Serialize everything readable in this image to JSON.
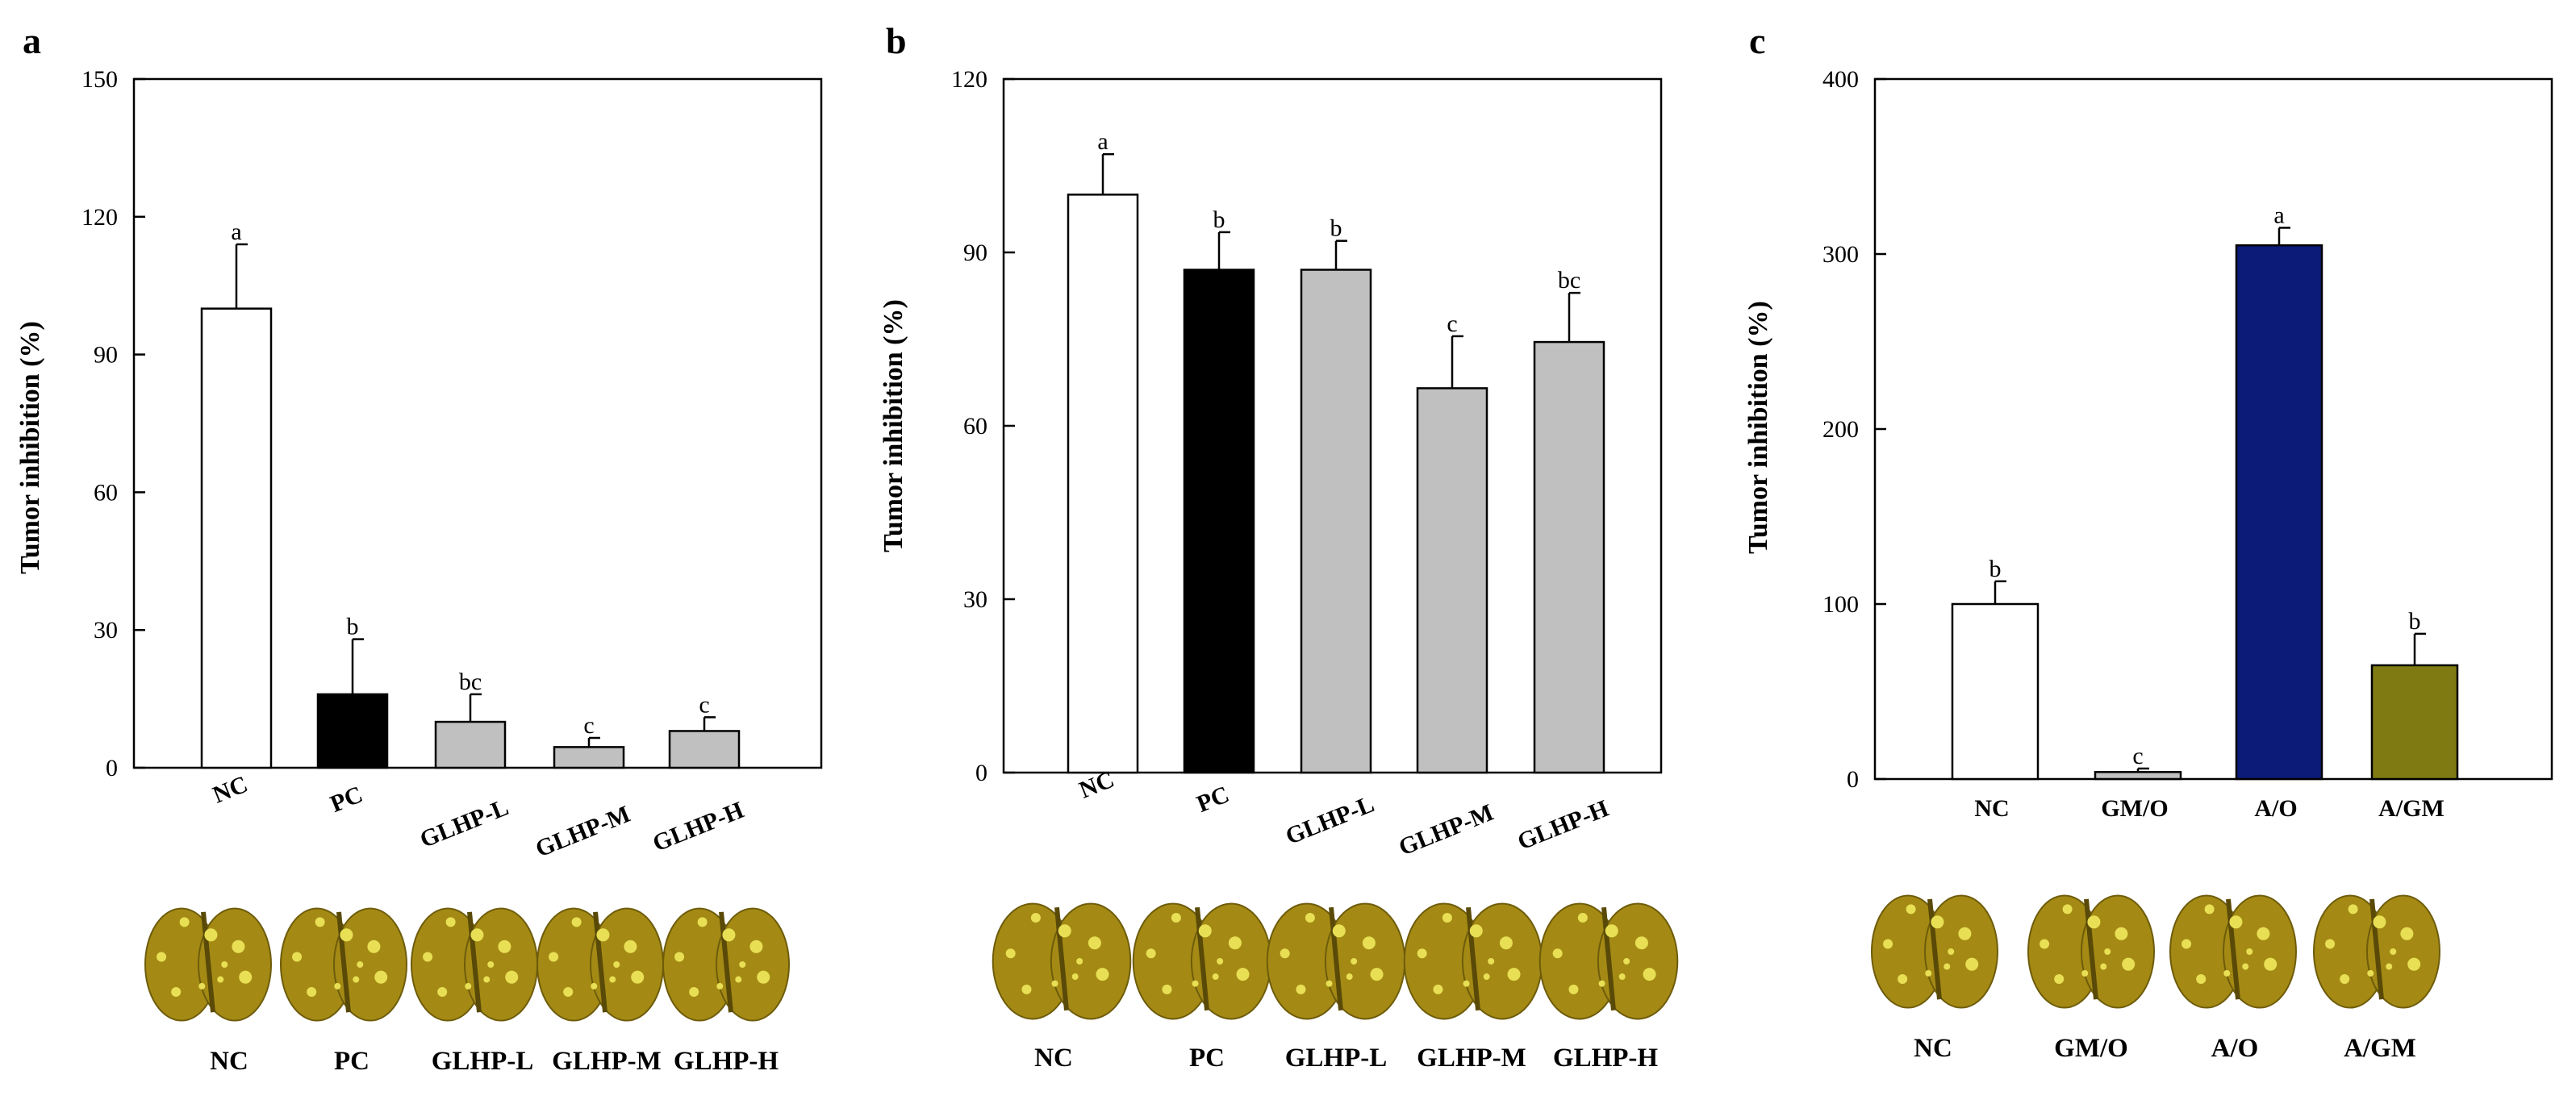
{
  "figure": {
    "colors": {
      "white_bar": "#ffffff",
      "black_bar": "#000000",
      "gray_bar": "#c0c0c0",
      "navy_bar": "#0c1a78",
      "olive_bar": "#7f7b12",
      "liver": "#a48a14",
      "nodule": "#e8df55"
    }
  },
  "chart_data": [
    {
      "panel": "a",
      "type": "bar",
      "ylabel": "Tumor inhibition (%)",
      "ylim": [
        0,
        150
      ],
      "yticks": [
        0,
        30,
        60,
        90,
        120,
        150
      ],
      "categories": [
        "NC",
        "PC",
        "GLHP-L",
        "GLHP-M",
        "GLHP-H"
      ],
      "values": [
        100,
        16,
        10,
        4.5,
        8
      ],
      "errors": [
        14,
        12,
        6,
        2,
        3
      ],
      "letters": [
        "a",
        "b",
        "bc",
        "c",
        "c"
      ],
      "bar_colors": [
        "white",
        "black",
        "gray",
        "gray",
        "gray"
      ],
      "photo_labels": [
        "NC",
        "PC",
        "GLHP-L",
        "GLHP-M",
        "GLHP-H"
      ]
    },
    {
      "panel": "b",
      "type": "bar",
      "ylabel": "Tumor inhibition (%)",
      "ylim": [
        0,
        120
      ],
      "yticks": [
        0,
        30,
        60,
        90,
        120
      ],
      "categories": [
        "NC",
        "PC",
        "GLHP-L",
        "GLHP-M",
        "GLHP-H"
      ],
      "values": [
        100,
        87,
        87,
        66.5,
        74.5
      ],
      "errors": [
        7,
        6.5,
        5,
        9,
        8.5
      ],
      "letters": [
        "a",
        "b",
        "b",
        "c",
        "bc"
      ],
      "bar_colors": [
        "white",
        "black",
        "gray",
        "gray",
        "gray"
      ],
      "photo_labels": [
        "NC",
        "PC",
        "GLHP-L",
        "GLHP-M",
        "GLHP-H"
      ]
    },
    {
      "panel": "c",
      "type": "bar",
      "ylabel": "Tumor inhibition (%)",
      "ylim": [
        0,
        400
      ],
      "yticks": [
        0,
        100,
        200,
        300,
        400
      ],
      "categories": [
        "NC",
        "GM/O",
        "A/O",
        "A/GM"
      ],
      "values": [
        100,
        4,
        305,
        65
      ],
      "errors": [
        13,
        2,
        10,
        18
      ],
      "letters": [
        "b",
        "c",
        "a",
        "b"
      ],
      "bar_colors": [
        "white",
        "gray",
        "navy",
        "olive"
      ],
      "photo_labels": [
        "NC",
        "GM/O",
        "A/O",
        "A/GM"
      ]
    }
  ]
}
